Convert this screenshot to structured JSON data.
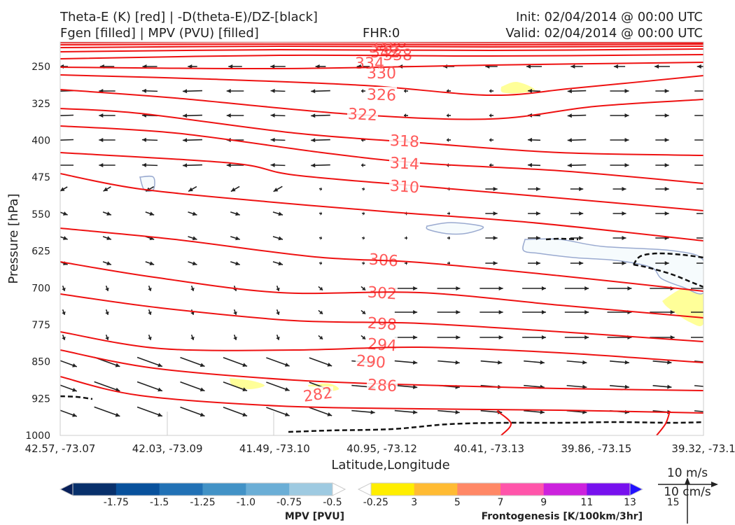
{
  "header": {
    "title_line1": "Theta-E (K) [red] | -D(theta-E)/DZ-[black]",
    "title_line2": "Fgen [filled] | MPV (PVU) [filled]",
    "fhr": "FHR:0",
    "init": "Init: 02/04/2014 @ 00:00 UTC",
    "valid": "Valid: 02/04/2014 @ 00:00 UTC"
  },
  "chart_data": {
    "type": "cross-section",
    "xlabel": "Latitude,Longitude",
    "ylabel": "Pressure [hPa]",
    "x_ticks": [
      "42.57, -73.07",
      "42.03, -73.09",
      "41.49, -73.10",
      "40.95, -73.12",
      "40.41, -73.13",
      "39.86, -73.15",
      "39.32, -73.1"
    ],
    "y_ticks": [
      250,
      325,
      400,
      475,
      550,
      625,
      700,
      775,
      850,
      925,
      1000
    ],
    "y_range": [
      200,
      1000
    ],
    "theta_e_contours": [
      {
        "label": "350",
        "color": "#ee1111"
      },
      {
        "label": "346",
        "color": "#ee1111"
      },
      {
        "label": "342",
        "color": "#ee1111"
      },
      {
        "label": "338",
        "color": "#ee1111"
      },
      {
        "label": "334",
        "color": "#ee1111"
      },
      {
        "label": "330",
        "color": "#ee1111"
      },
      {
        "label": "326",
        "color": "#ee1111"
      },
      {
        "label": "322",
        "color": "#ee1111"
      },
      {
        "label": "318",
        "color": "#ee1111"
      },
      {
        "label": "314",
        "color": "#ee1111"
      },
      {
        "label": "310",
        "color": "#ee1111"
      },
      {
        "label": "306",
        "color": "#ee1111"
      },
      {
        "label": "302",
        "color": "#ee1111"
      },
      {
        "label": "298",
        "color": "#ee1111"
      },
      {
        "label": "294",
        "color": "#ee1111"
      },
      {
        "label": "290",
        "color": "#ee1111"
      },
      {
        "label": "286",
        "color": "#ee1111"
      },
      {
        "label": "282",
        "color": "#ee1111"
      }
    ],
    "mpv_colorbar": {
      "label": "MPV [PVU]",
      "ticks": [
        "-1.75",
        "-1.5",
        "-1.25",
        "-1.0",
        "-0.75",
        "-0.5",
        "-0.25"
      ],
      "colors": [
        "#08205a",
        "#08306b",
        "#08519c",
        "#2171b5",
        "#4292c6",
        "#6baed6",
        "#9ecae1",
        "#ffffff"
      ]
    },
    "fgen_colorbar": {
      "label": "Frontogenesis [K/100km/3hr]",
      "ticks": [
        "3",
        "5",
        "7",
        "9",
        "11",
        "13",
        "15"
      ],
      "colors": [
        "#ffffff",
        "#ffee00",
        "#ffbb33",
        "#ff8866",
        "#ff55aa",
        "#cc22dd",
        "#7711ee",
        "#2211ff"
      ]
    },
    "wind_key": {
      "top_label": "10 m/s",
      "bottom_label": "10 cm/s"
    }
  }
}
